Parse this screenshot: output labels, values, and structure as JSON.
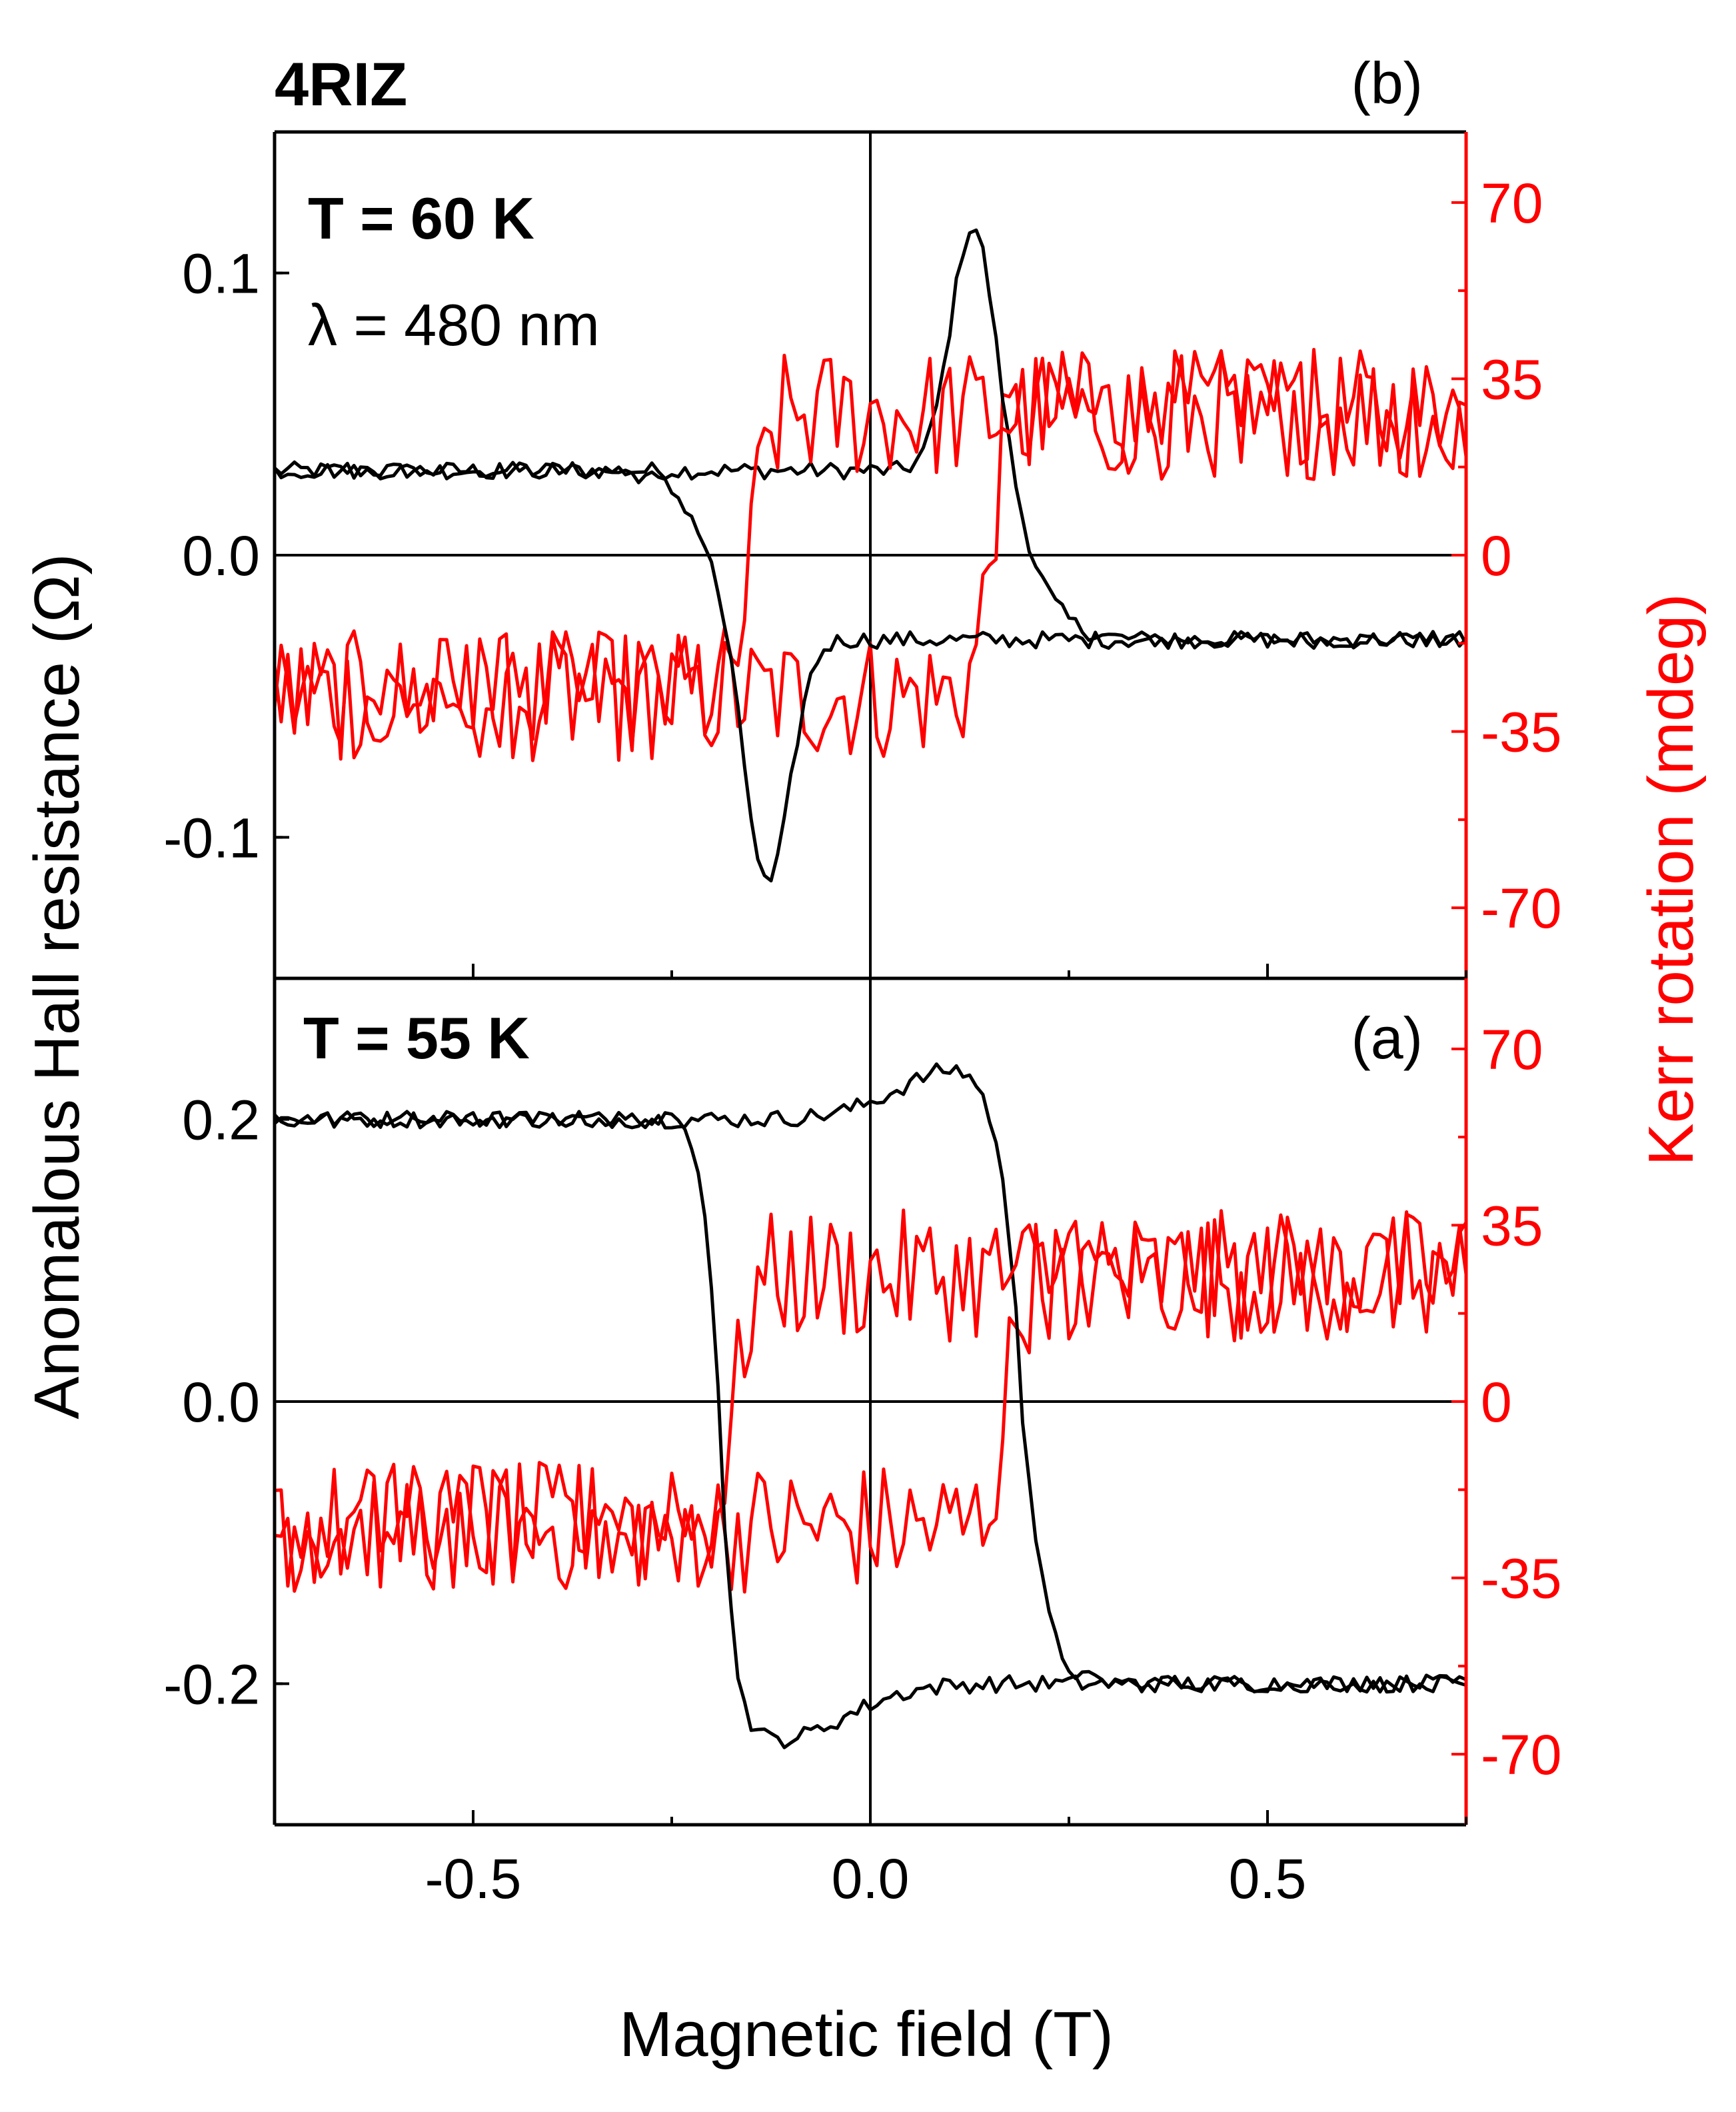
{
  "chart_data": {
    "type": "line",
    "title": "4RIZ",
    "xlabel": "Magnetic field (T)",
    "ylabel_left": "Anomalous Hall resistance (Ω)",
    "ylabel_right": "Kerr rotation (mdeg)",
    "xlim": [
      -0.75,
      0.75
    ],
    "xticks": [
      "-0.5",
      "0.0",
      "0.5"
    ],
    "colors": {
      "hall": "#000000",
      "kerr": "#ff0000",
      "axis": "#000000",
      "right_axis": "#ff0000"
    },
    "panels": [
      {
        "id": "b",
        "panel_label": "(b)",
        "temperature_label": "T = 60 K",
        "wavelength_label": "λ = 480 nm",
        "ylim_left": [
          -0.15,
          0.15
        ],
        "yticks_left": [
          "0.1",
          "0.0",
          "-0.1"
        ],
        "ylim_right": [
          -84,
          84
        ],
        "yticks_right": [
          "70",
          "35",
          "0",
          "-35",
          "-70"
        ],
        "hall_type": "peaks",
        "hall_level": 0.03,
        "hall_peak": 0.12,
        "hall_switch_field": 0.15,
        "kerr_level": 28,
        "kerr_switch_field": 0.15
      },
      {
        "id": "a",
        "panel_label": "(a)",
        "temperature_label": "T = 55 K",
        "ylim_left": [
          -0.3,
          0.3
        ],
        "yticks_left": [
          "0.2",
          "0.0",
          "-0.2"
        ],
        "ylim_right": [
          -84,
          84
        ],
        "yticks_right": [
          "70",
          "35",
          "0",
          "-35",
          "-70"
        ],
        "hall_type": "loop",
        "hall_level": 0.2,
        "hall_overshoot": 0.24,
        "hall_switch_field": 0.19,
        "kerr_level": 25,
        "kerr_switch_field": 0.17
      }
    ]
  }
}
